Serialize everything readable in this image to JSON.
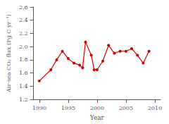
{
  "chart_data": {
    "type": "line",
    "x": [
      1990,
      1992,
      1993,
      1994,
      1995,
      1996,
      1997,
      1997.5,
      1998,
      1999,
      1999.5,
      2000,
      2001,
      2002,
      2003,
      2004,
      2005,
      2006,
      2007,
      2008,
      2009
    ],
    "values": [
      1.48,
      1.65,
      1.8,
      1.93,
      1.82,
      1.75,
      1.72,
      1.68,
      2.07,
      1.87,
      1.65,
      1.65,
      1.78,
      2.02,
      1.9,
      1.93,
      1.93,
      1.97,
      1.87,
      1.75,
      1.93
    ],
    "color": "#cc0000",
    "marker": "circle",
    "xlabel": "Year",
    "ylabel": "Air-sea CO₂ flux (Pg C yr⁻¹)",
    "xlim": [
      1989,
      2011
    ],
    "ylim": [
      1.2,
      2.6
    ],
    "xticks": [
      1990,
      1995,
      2000,
      2005,
      2010
    ],
    "yticks": [
      1.2,
      1.4,
      1.6,
      1.8,
      {
        "value": 2.0,
        "label": "2.0"
      },
      2.2,
      2.4,
      2.6
    ],
    "grid": false
  }
}
